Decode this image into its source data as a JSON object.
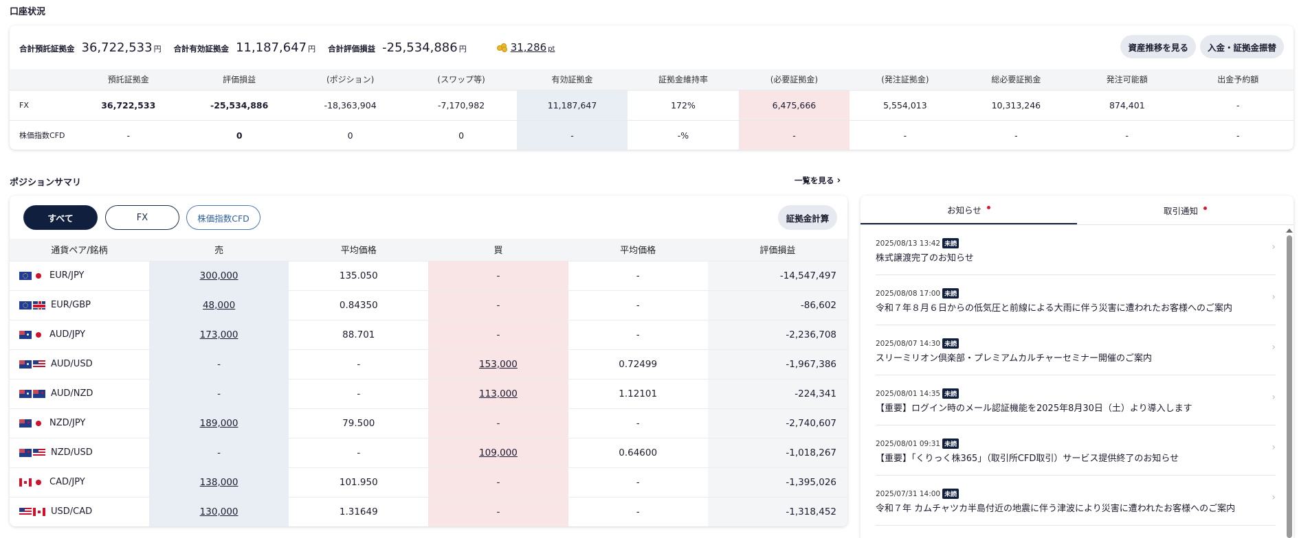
{
  "account": {
    "title": "口座状況",
    "summary": {
      "deposit_label": "合計預託証拠金",
      "deposit_value": "36,722,533",
      "deposit_unit": "円",
      "effective_label": "合計有効証拠金",
      "effective_value": "11,187,647",
      "effective_unit": "円",
      "pl_label": "合計評価損益",
      "pl_value": "-25,534,886",
      "pl_unit": "円",
      "points_value": "31,286",
      "points_unit": "pt"
    },
    "buttons": {
      "history": "資産推移を見る",
      "transfer": "入金・証拠金振替"
    },
    "columns": [
      "",
      "預託証拠金",
      "評価損益",
      "(ポジション)",
      "(スワップ等)",
      "有効証拠金",
      "証拠金維持率",
      "(必要証拠金)",
      "(発注証拠金)",
      "総必要証拠金",
      "発注可能額",
      "出金予約額"
    ],
    "rows": [
      [
        "FX",
        "36,722,533",
        "-25,534,886",
        "-18,363,904",
        "-7,170,982",
        "11,187,647",
        "172%",
        "6,475,666",
        "5,554,013",
        "10,313,246",
        "874,401",
        "-"
      ],
      [
        "株価指数CFD",
        "-",
        "0",
        "0",
        "0",
        "-",
        "-%",
        "-",
        "-",
        "-",
        "-",
        "-"
      ]
    ]
  },
  "positions": {
    "title": "ポジションサマリ",
    "see_all": "一覧を見る",
    "filters": [
      "すべて",
      "FX",
      "株価指数CFD"
    ],
    "calc_button": "証拠金計算",
    "columns": [
      "通貨ペア/銘柄",
      "売",
      "平均価格",
      "買",
      "平均価格",
      "評価損益"
    ],
    "rows": [
      {
        "pair": "EUR/JPY",
        "sell": "300,000",
        "sell_avg": "135.050",
        "buy": "-",
        "buy_avg": "-",
        "pl": "-14,547,497"
      },
      {
        "pair": "EUR/GBP",
        "sell": "48,000",
        "sell_avg": "0.84350",
        "buy": "-",
        "buy_avg": "-",
        "pl": "-86,602"
      },
      {
        "pair": "AUD/JPY",
        "sell": "173,000",
        "sell_avg": "88.701",
        "buy": "-",
        "buy_avg": "-",
        "pl": "-2,236,708"
      },
      {
        "pair": "AUD/USD",
        "sell": "-",
        "sell_avg": "-",
        "buy": "153,000",
        "buy_avg": "0.72499",
        "pl": "-1,967,386"
      },
      {
        "pair": "AUD/NZD",
        "sell": "-",
        "sell_avg": "-",
        "buy": "113,000",
        "buy_avg": "1.12101",
        "pl": "-224,341"
      },
      {
        "pair": "NZD/JPY",
        "sell": "189,000",
        "sell_avg": "79.500",
        "buy": "-",
        "buy_avg": "-",
        "pl": "-2,740,607"
      },
      {
        "pair": "NZD/USD",
        "sell": "-",
        "sell_avg": "-",
        "buy": "109,000",
        "buy_avg": "0.64600",
        "pl": "-1,018,267"
      },
      {
        "pair": "CAD/JPY",
        "sell": "138,000",
        "sell_avg": "101.950",
        "buy": "-",
        "buy_avg": "-",
        "pl": "-1,395,026"
      },
      {
        "pair": "USD/CAD",
        "sell": "130,000",
        "sell_avg": "1.31649",
        "buy": "-",
        "buy_avg": "-",
        "pl": "-1,318,452"
      }
    ]
  },
  "notices": {
    "tabs": [
      "お知らせ",
      "取引通知"
    ],
    "badge": "未読",
    "items": [
      {
        "date": "2025/08/13 13:42",
        "title": "株式譲渡完了のお知らせ"
      },
      {
        "date": "2025/08/08 17:00",
        "title": "令和７年８月６日からの低気圧と前線による大雨に伴う災害に遭われたお客様へのご案内"
      },
      {
        "date": "2025/08/07 14:30",
        "title": "スリーミリオン倶楽部・プレミアムカルチャーセミナー開催のご案内"
      },
      {
        "date": "2025/08/01 14:35",
        "title": "【重要】ログイン時のメール認証機能を2025年8月30日（土）より導入します"
      },
      {
        "date": "2025/08/01 09:31",
        "title": "【重要】「くりっく株365」（取引所CFD取引）サービス提供終了のお知らせ"
      },
      {
        "date": "2025/07/31 14:00",
        "title": "令和７年 カムチャツカ半島付近の地震に伴う津波により災害に遭われたお客様へのご案内"
      }
    ]
  },
  "colors": {
    "navy": "#0f1f3d",
    "blue_cell": "#e9eef5",
    "pink_cell": "#f9e4e6",
    "grey_cell": "#f4f5f7",
    "dot_red": "#e0142d"
  }
}
